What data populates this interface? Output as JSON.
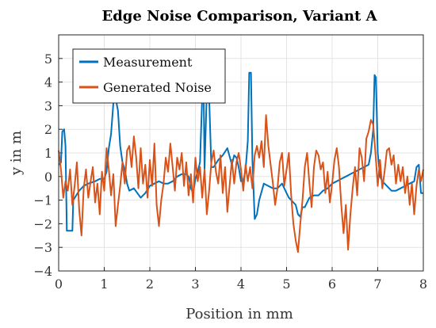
{
  "chart_data": {
    "type": "line",
    "title": "Edge Noise Comparison, Variant A",
    "xlabel": "Position in mm",
    "ylabel": "y in m",
    "xlim": [
      0,
      8
    ],
    "ylim": [
      -4,
      6
    ],
    "xticks": [
      "0",
      "1",
      "2",
      "3",
      "4",
      "5",
      "6",
      "7",
      "8"
    ],
    "yticks": [
      "−4",
      "−3",
      "−2",
      "−1",
      "0",
      "1",
      "2",
      "3",
      "4",
      "5"
    ],
    "grid": true,
    "legend_position": "top-left",
    "series": [
      {
        "name": "Measurement",
        "color": "#0072BD",
        "points": [
          [
            0.0,
            0.5
          ],
          [
            0.05,
            0.6
          ],
          [
            0.08,
            1.9
          ],
          [
            0.12,
            2.0
          ],
          [
            0.15,
            1.3
          ],
          [
            0.18,
            -2.3
          ],
          [
            0.3,
            -2.3
          ],
          [
            0.32,
            -1.0
          ],
          [
            0.45,
            -0.6
          ],
          [
            0.55,
            -0.4
          ],
          [
            0.65,
            -0.3
          ],
          [
            0.8,
            -0.2
          ],
          [
            0.9,
            -0.1
          ],
          [
            1.0,
            -0.1
          ],
          [
            1.05,
            0.2
          ],
          [
            1.1,
            1.2
          ],
          [
            1.15,
            1.8
          ],
          [
            1.2,
            3.1
          ],
          [
            1.25,
            3.3
          ],
          [
            1.3,
            2.8
          ],
          [
            1.35,
            1.3
          ],
          [
            1.4,
            0.6
          ],
          [
            1.45,
            0.3
          ],
          [
            1.5,
            -0.3
          ],
          [
            1.55,
            -0.6
          ],
          [
            1.65,
            -0.5
          ],
          [
            1.8,
            -0.9
          ],
          [
            1.9,
            -0.7
          ],
          [
            2.0,
            -0.4
          ],
          [
            2.1,
            -0.3
          ],
          [
            2.2,
            -0.2
          ],
          [
            2.3,
            -0.3
          ],
          [
            2.4,
            -0.3
          ],
          [
            2.5,
            -0.2
          ],
          [
            2.6,
            0.0
          ],
          [
            2.7,
            0.1
          ],
          [
            2.8,
            0.1
          ],
          [
            2.85,
            0.0
          ],
          [
            2.9,
            -0.5
          ],
          [
            2.95,
            -0.7
          ],
          [
            3.0,
            -0.1
          ],
          [
            3.05,
            0.2
          ],
          [
            3.1,
            0.6
          ],
          [
            3.15,
            3.4
          ],
          [
            3.18,
            3.6
          ],
          [
            3.2,
            0.3
          ],
          [
            3.25,
            3.6
          ],
          [
            3.3,
            3.4
          ],
          [
            3.35,
            0.4
          ],
          [
            3.4,
            0.4
          ],
          [
            3.5,
            0.7
          ],
          [
            3.6,
            0.9
          ],
          [
            3.7,
            1.2
          ],
          [
            3.8,
            0.5
          ],
          [
            3.85,
            0.9
          ],
          [
            3.9,
            0.8
          ],
          [
            3.95,
            0.4
          ],
          [
            4.0,
            -0.2
          ],
          [
            4.05,
            -0.2
          ],
          [
            4.1,
            0.3
          ],
          [
            4.15,
            1.5
          ],
          [
            4.18,
            4.4
          ],
          [
            4.22,
            4.4
          ],
          [
            4.25,
            0.7
          ],
          [
            4.3,
            -1.8
          ],
          [
            4.35,
            -1.6
          ],
          [
            4.4,
            -1.0
          ],
          [
            4.5,
            -0.3
          ],
          [
            4.6,
            -0.4
          ],
          [
            4.7,
            -0.5
          ],
          [
            4.8,
            -0.5
          ],
          [
            4.9,
            -0.3
          ],
          [
            5.0,
            -0.7
          ],
          [
            5.05,
            -0.9
          ],
          [
            5.1,
            -1.0
          ],
          [
            5.2,
            -1.2
          ],
          [
            5.25,
            -1.6
          ],
          [
            5.3,
            -1.7
          ],
          [
            5.35,
            -1.3
          ],
          [
            5.4,
            -1.3
          ],
          [
            5.5,
            -0.9
          ],
          [
            5.6,
            -0.8
          ],
          [
            5.7,
            -0.8
          ],
          [
            5.8,
            -0.6
          ],
          [
            5.9,
            -0.5
          ],
          [
            6.0,
            -0.3
          ],
          [
            6.1,
            -0.2
          ],
          [
            6.2,
            -0.1
          ],
          [
            6.3,
            0.0
          ],
          [
            6.4,
            0.1
          ],
          [
            6.5,
            0.2
          ],
          [
            6.6,
            0.3
          ],
          [
            6.7,
            0.4
          ],
          [
            6.8,
            0.5
          ],
          [
            6.85,
            1.0
          ],
          [
            6.9,
            2.0
          ],
          [
            6.93,
            4.3
          ],
          [
            6.96,
            4.2
          ],
          [
            7.0,
            1.0
          ],
          [
            7.05,
            0.0
          ],
          [
            7.1,
            -0.2
          ],
          [
            7.2,
            -0.4
          ],
          [
            7.3,
            -0.6
          ],
          [
            7.4,
            -0.6
          ],
          [
            7.5,
            -0.5
          ],
          [
            7.6,
            -0.4
          ],
          [
            7.7,
            -0.3
          ],
          [
            7.8,
            -0.2
          ],
          [
            7.85,
            0.4
          ],
          [
            7.9,
            0.5
          ],
          [
            7.95,
            -0.7
          ],
          [
            8.0,
            -0.7
          ]
        ]
      },
      {
        "name": "Generated Noise",
        "color": "#D95319",
        "points": [
          [
            0.0,
            1.1
          ],
          [
            0.05,
            0.3
          ],
          [
            0.1,
            -0.9
          ],
          [
            0.15,
            -0.2
          ],
          [
            0.2,
            -0.6
          ],
          [
            0.25,
            0.3
          ],
          [
            0.3,
            -1.2
          ],
          [
            0.35,
            -0.4
          ],
          [
            0.4,
            0.6
          ],
          [
            0.45,
            -1.4
          ],
          [
            0.5,
            -2.5
          ],
          [
            0.55,
            -0.5
          ],
          [
            0.6,
            0.3
          ],
          [
            0.65,
            -0.9
          ],
          [
            0.7,
            -0.2
          ],
          [
            0.75,
            0.4
          ],
          [
            0.8,
            -1.1
          ],
          [
            0.85,
            -0.3
          ],
          [
            0.9,
            -1.6
          ],
          [
            0.95,
            0.2
          ],
          [
            1.0,
            -0.6
          ],
          [
            1.05,
            1.2
          ],
          [
            1.1,
            0.3
          ],
          [
            1.15,
            -0.8
          ],
          [
            1.2,
            0.1
          ],
          [
            1.25,
            -2.1
          ],
          [
            1.3,
            -1.2
          ],
          [
            1.35,
            -0.4
          ],
          [
            1.4,
            0.6
          ],
          [
            1.45,
            -0.3
          ],
          [
            1.5,
            1.1
          ],
          [
            1.55,
            1.3
          ],
          [
            1.6,
            0.4
          ],
          [
            1.65,
            1.7
          ],
          [
            1.7,
            0.8
          ],
          [
            1.75,
            -0.5
          ],
          [
            1.8,
            1.2
          ],
          [
            1.85,
            -0.3
          ],
          [
            1.9,
            0.5
          ],
          [
            1.95,
            -0.9
          ],
          [
            2.0,
            0.7
          ],
          [
            2.05,
            -0.4
          ],
          [
            2.1,
            1.4
          ],
          [
            2.15,
            -1.2
          ],
          [
            2.2,
            -2.1
          ],
          [
            2.25,
            -1.0
          ],
          [
            2.3,
            -0.3
          ],
          [
            2.35,
            0.8
          ],
          [
            2.4,
            0.2
          ],
          [
            2.45,
            1.4
          ],
          [
            2.5,
            0.4
          ],
          [
            2.55,
            -0.6
          ],
          [
            2.6,
            0.8
          ],
          [
            2.65,
            0.3
          ],
          [
            2.7,
            1.0
          ],
          [
            2.75,
            -0.4
          ],
          [
            2.8,
            0.6
          ],
          [
            2.85,
            -0.8
          ],
          [
            2.9,
            0.1
          ],
          [
            2.95,
            -1.1
          ],
          [
            3.0,
            0.8
          ],
          [
            3.05,
            -0.2
          ],
          [
            3.1,
            0.4
          ],
          [
            3.15,
            -0.9
          ],
          [
            3.2,
            0.3
          ],
          [
            3.25,
            -1.6
          ],
          [
            3.3,
            -0.6
          ],
          [
            3.35,
            0.6
          ],
          [
            3.4,
            1.1
          ],
          [
            3.45,
            0.2
          ],
          [
            3.5,
            -0.3
          ],
          [
            3.55,
            0.9
          ],
          [
            3.6,
            -0.7
          ],
          [
            3.65,
            0.4
          ],
          [
            3.7,
            -1.5
          ],
          [
            3.75,
            -0.4
          ],
          [
            3.8,
            0.7
          ],
          [
            3.85,
            -0.3
          ],
          [
            3.9,
            0.6
          ],
          [
            3.95,
            1.0
          ],
          [
            4.0,
            0.3
          ],
          [
            4.05,
            -0.6
          ],
          [
            4.1,
            0.5
          ],
          [
            4.15,
            -0.2
          ],
          [
            4.2,
            0.4
          ],
          [
            4.25,
            -0.5
          ],
          [
            4.3,
            0.9
          ],
          [
            4.35,
            1.3
          ],
          [
            4.4,
            0.8
          ],
          [
            4.45,
            1.5
          ],
          [
            4.5,
            0.4
          ],
          [
            4.55,
            2.6
          ],
          [
            4.6,
            1.3
          ],
          [
            4.65,
            0.5
          ],
          [
            4.7,
            -0.3
          ],
          [
            4.75,
            -1.2
          ],
          [
            4.8,
            -0.5
          ],
          [
            4.85,
            0.6
          ],
          [
            4.9,
            1.0
          ],
          [
            4.95,
            -0.4
          ],
          [
            5.0,
            0.3
          ],
          [
            5.05,
            1.0
          ],
          [
            5.1,
            -0.8
          ],
          [
            5.15,
            -2.0
          ],
          [
            5.2,
            -2.7
          ],
          [
            5.25,
            -3.2
          ],
          [
            5.3,
            -2.0
          ],
          [
            5.35,
            -1.0
          ],
          [
            5.4,
            0.4
          ],
          [
            5.45,
            1.0
          ],
          [
            5.5,
            -0.3
          ],
          [
            5.55,
            -1.3
          ],
          [
            5.6,
            0.4
          ],
          [
            5.65,
            1.1
          ],
          [
            5.7,
            0.9
          ],
          [
            5.75,
            0.3
          ],
          [
            5.8,
            0.6
          ],
          [
            5.85,
            -0.7
          ],
          [
            5.9,
            0.2
          ],
          [
            5.95,
            -1.1
          ],
          [
            6.0,
            -0.3
          ],
          [
            6.05,
            0.7
          ],
          [
            6.1,
            1.2
          ],
          [
            6.15,
            0.4
          ],
          [
            6.2,
            -1.2
          ],
          [
            6.25,
            -2.4
          ],
          [
            6.3,
            -1.2
          ],
          [
            6.35,
            -3.1
          ],
          [
            6.4,
            -1.6
          ],
          [
            6.45,
            -0.5
          ],
          [
            6.5,
            0.4
          ],
          [
            6.55,
            -0.8
          ],
          [
            6.6,
            1.2
          ],
          [
            6.65,
            0.8
          ],
          [
            6.7,
            -0.2
          ],
          [
            6.75,
            1.6
          ],
          [
            6.8,
            1.9
          ],
          [
            6.85,
            2.4
          ],
          [
            6.9,
            2.2
          ],
          [
            6.95,
            1.0
          ],
          [
            7.0,
            -0.4
          ],
          [
            7.05,
            0.7
          ],
          [
            7.1,
            -0.5
          ],
          [
            7.15,
            0.2
          ],
          [
            7.2,
            1.1
          ],
          [
            7.25,
            1.2
          ],
          [
            7.3,
            0.5
          ],
          [
            7.35,
            0.9
          ],
          [
            7.4,
            -0.3
          ],
          [
            7.45,
            0.5
          ],
          [
            7.5,
            -0.2
          ],
          [
            7.55,
            0.4
          ],
          [
            7.6,
            -0.7
          ],
          [
            7.65,
            0.0
          ],
          [
            7.7,
            -1.2
          ],
          [
            7.75,
            -0.3
          ],
          [
            7.8,
            -1.6
          ],
          [
            7.85,
            -0.4
          ],
          [
            7.9,
            0.3
          ],
          [
            7.95,
            -0.2
          ],
          [
            8.0,
            0.3
          ]
        ]
      }
    ]
  }
}
